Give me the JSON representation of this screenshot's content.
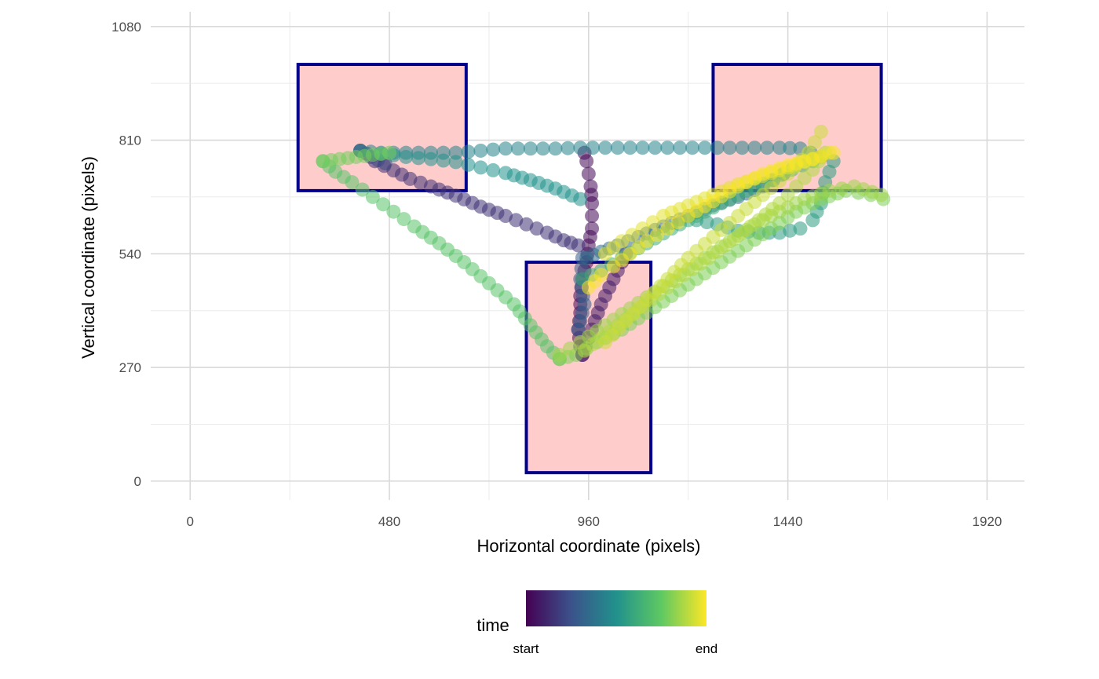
{
  "chart_data": {
    "type": "scatter",
    "xlabel": "Horizontal coordinate (pixels)",
    "ylabel": "Vertical coordinate (pixels)",
    "xlim": [
      -95,
      2010
    ],
    "ylim": [
      -45,
      1115
    ],
    "x_ticks": [
      0,
      480,
      960,
      1440,
      1920
    ],
    "x_tick_labels": [
      "0",
      "480",
      "960",
      "1440",
      "1920"
    ],
    "y_ticks": [
      0,
      270,
      540,
      810,
      1080
    ],
    "y_tick_labels": [
      "0",
      "270",
      "540",
      "810",
      "1080"
    ],
    "grid": true,
    "legend": {
      "title": "time",
      "position": "bottom",
      "min_label": "start",
      "max_label": "end",
      "colors": [
        "#440154",
        "#3b528b",
        "#21918c",
        "#5ec962",
        "#fde725"
      ]
    },
    "rectangles": [
      {
        "x0": 260,
        "x1": 665,
        "y0": 690,
        "y1": 990
      },
      {
        "x0": 810,
        "x1": 1110,
        "y0": 20,
        "y1": 520
      },
      {
        "x0": 1260,
        "x1": 1665,
        "y0": 690,
        "y1": 990
      }
    ],
    "rectangle_fill": "#ffcccc",
    "rectangle_stroke": "#00008b",
    "gaze_paths": [
      {
        "t": 0.02,
        "pts": [
          [
            950,
            780
          ],
          [
            955,
            760
          ],
          [
            960,
            730
          ],
          [
            965,
            700
          ],
          [
            968,
            660
          ],
          [
            968,
            600
          ],
          [
            960,
            560
          ],
          [
            955,
            520
          ],
          [
            945,
            480
          ],
          [
            940,
            440
          ],
          [
            940,
            400
          ],
          [
            935,
            360
          ],
          [
            940,
            320
          ],
          [
            945,
            300
          ]
        ]
      },
      {
        "t": 0.08,
        "pts": [
          [
            945,
            300
          ],
          [
            960,
            340
          ],
          [
            975,
            380
          ],
          [
            990,
            420
          ],
          [
            1010,
            460
          ],
          [
            1030,
            500
          ],
          [
            1050,
            540
          ]
        ]
      },
      {
        "t": 0.15,
        "pts": [
          [
            935,
            560
          ],
          [
            900,
            572
          ],
          [
            860,
            590
          ],
          [
            810,
            610
          ],
          [
            760,
            630
          ],
          [
            700,
            652
          ],
          [
            640,
            678
          ],
          [
            580,
            700
          ],
          [
            530,
            718
          ],
          [
            490,
            738
          ],
          [
            445,
            760
          ],
          [
            425,
            778
          ],
          [
            410,
            785
          ]
        ]
      },
      {
        "t": 0.22,
        "pts": [
          [
            410,
            785
          ],
          [
            435,
            770
          ],
          [
            470,
            755
          ]
        ]
      },
      {
        "t": 0.3,
        "pts": [
          [
            935,
            360
          ],
          [
            950,
            420
          ],
          [
            940,
            480
          ],
          [
            945,
            530
          ]
        ]
      },
      {
        "t": 0.35,
        "pts": [
          [
            955,
            530
          ],
          [
            990,
            545
          ],
          [
            1030,
            560
          ],
          [
            1080,
            580
          ],
          [
            1140,
            605
          ],
          [
            1200,
            630
          ],
          [
            1260,
            655
          ],
          [
            1320,
            675
          ],
          [
            1380,
            700
          ],
          [
            1430,
            730
          ]
        ]
      },
      {
        "t": 0.45,
        "pts": [
          [
            410,
            785
          ],
          [
            460,
            780
          ],
          [
            520,
            780
          ],
          [
            580,
            780
          ],
          [
            640,
            780
          ],
          [
            700,
            785
          ],
          [
            760,
            790
          ],
          [
            820,
            790
          ],
          [
            880,
            790
          ],
          [
            940,
            792
          ],
          [
            1000,
            792
          ],
          [
            1060,
            792
          ],
          [
            1120,
            792
          ],
          [
            1180,
            792
          ],
          [
            1240,
            792
          ],
          [
            1300,
            792
          ],
          [
            1360,
            792
          ],
          [
            1420,
            792
          ],
          [
            1470,
            790
          ],
          [
            1520,
            770
          ]
        ]
      },
      {
        "t": 0.5,
        "pts": [
          [
            460,
            778
          ],
          [
            520,
            770
          ],
          [
            580,
            765
          ],
          [
            640,
            758
          ],
          [
            700,
            745
          ],
          [
            760,
            732
          ],
          [
            820,
            715
          ],
          [
            880,
            695
          ],
          [
            940,
            670
          ]
        ]
      },
      {
        "t": 0.55,
        "pts": [
          [
            1550,
            760
          ],
          [
            1530,
            710
          ],
          [
            1520,
            660
          ],
          [
            1500,
            620
          ],
          [
            1470,
            600
          ],
          [
            1420,
            590
          ],
          [
            1370,
            590
          ],
          [
            1320,
            595
          ],
          [
            1270,
            610
          ],
          [
            1220,
            620
          ]
        ]
      },
      {
        "t": 0.62,
        "pts": [
          [
            945,
            480
          ],
          [
            990,
            500
          ],
          [
            1040,
            530
          ],
          [
            1100,
            565
          ],
          [
            1160,
            600
          ],
          [
            1220,
            630
          ],
          [
            1280,
            660
          ],
          [
            1340,
            690
          ],
          [
            1400,
            715
          ],
          [
            1450,
            740
          ],
          [
            1500,
            760
          ]
        ]
      },
      {
        "t": 0.72,
        "pts": [
          [
            320,
            760
          ],
          [
            350,
            735
          ],
          [
            390,
            710
          ],
          [
            440,
            675
          ],
          [
            490,
            640
          ],
          [
            540,
            605
          ],
          [
            600,
            565
          ],
          [
            660,
            520
          ],
          [
            720,
            470
          ],
          [
            780,
            420
          ],
          [
            820,
            370
          ],
          [
            860,
            320
          ],
          [
            890,
            290
          ]
        ]
      },
      {
        "t": 0.78,
        "pts": [
          [
            320,
            760
          ],
          [
            360,
            765
          ],
          [
            400,
            770
          ],
          [
            440,
            775
          ],
          [
            480,
            780
          ]
        ]
      },
      {
        "t": 0.8,
        "pts": [
          [
            890,
            290
          ],
          [
            930,
            300
          ],
          [
            980,
            330
          ],
          [
            1040,
            360
          ],
          [
            1100,
            400
          ],
          [
            1160,
            440
          ],
          [
            1220,
            480
          ],
          [
            1280,
            520
          ],
          [
            1340,
            560
          ],
          [
            1400,
            600
          ],
          [
            1460,
            640
          ],
          [
            1520,
            670
          ],
          [
            1580,
            690
          ],
          [
            1640,
            680
          ],
          [
            1670,
            670
          ]
        ]
      },
      {
        "t": 0.85,
        "pts": [
          [
            890,
            300
          ],
          [
            940,
            330
          ],
          [
            1000,
            370
          ],
          [
            1060,
            410
          ],
          [
            1120,
            450
          ],
          [
            1180,
            490
          ],
          [
            1240,
            530
          ],
          [
            1300,
            570
          ],
          [
            1360,
            610
          ],
          [
            1420,
            640
          ],
          [
            1480,
            670
          ],
          [
            1540,
            690
          ],
          [
            1600,
            700
          ],
          [
            1665,
            680
          ]
        ]
      },
      {
        "t": 0.88,
        "pts": [
          [
            950,
            310
          ],
          [
            1010,
            355
          ],
          [
            1070,
            400
          ],
          [
            1130,
            445
          ],
          [
            1190,
            490
          ],
          [
            1250,
            530
          ],
          [
            1310,
            575
          ],
          [
            1370,
            620
          ],
          [
            1420,
            660
          ],
          [
            1460,
            700
          ],
          [
            1500,
            740
          ],
          [
            1530,
            780
          ]
        ]
      },
      {
        "t": 0.92,
        "pts": [
          [
            1000,
            330
          ],
          [
            1050,
            380
          ],
          [
            1100,
            430
          ],
          [
            1150,
            480
          ],
          [
            1200,
            530
          ],
          [
            1260,
            580
          ],
          [
            1320,
            630
          ],
          [
            1380,
            680
          ],
          [
            1440,
            730
          ],
          [
            1490,
            780
          ],
          [
            1520,
            830
          ]
        ]
      },
      {
        "t": 0.96,
        "pts": [
          [
            1000,
            540
          ],
          [
            1040,
            570
          ],
          [
            1090,
            600
          ],
          [
            1140,
            630
          ],
          [
            1200,
            655
          ],
          [
            1260,
            680
          ],
          [
            1320,
            705
          ],
          [
            1380,
            725
          ],
          [
            1440,
            745
          ],
          [
            1500,
            765
          ],
          [
            1540,
            780
          ]
        ]
      },
      {
        "t": 0.99,
        "pts": [
          [
            960,
            460
          ],
          [
            990,
            490
          ],
          [
            1020,
            510
          ],
          [
            1060,
            540
          ],
          [
            1100,
            570
          ],
          [
            1150,
            600
          ],
          [
            1200,
            630
          ],
          [
            1260,
            665
          ],
          [
            1320,
            700
          ],
          [
            1380,
            730
          ],
          [
            1440,
            750
          ],
          [
            1480,
            760
          ],
          [
            1520,
            770
          ],
          [
            1550,
            780
          ]
        ]
      }
    ]
  }
}
